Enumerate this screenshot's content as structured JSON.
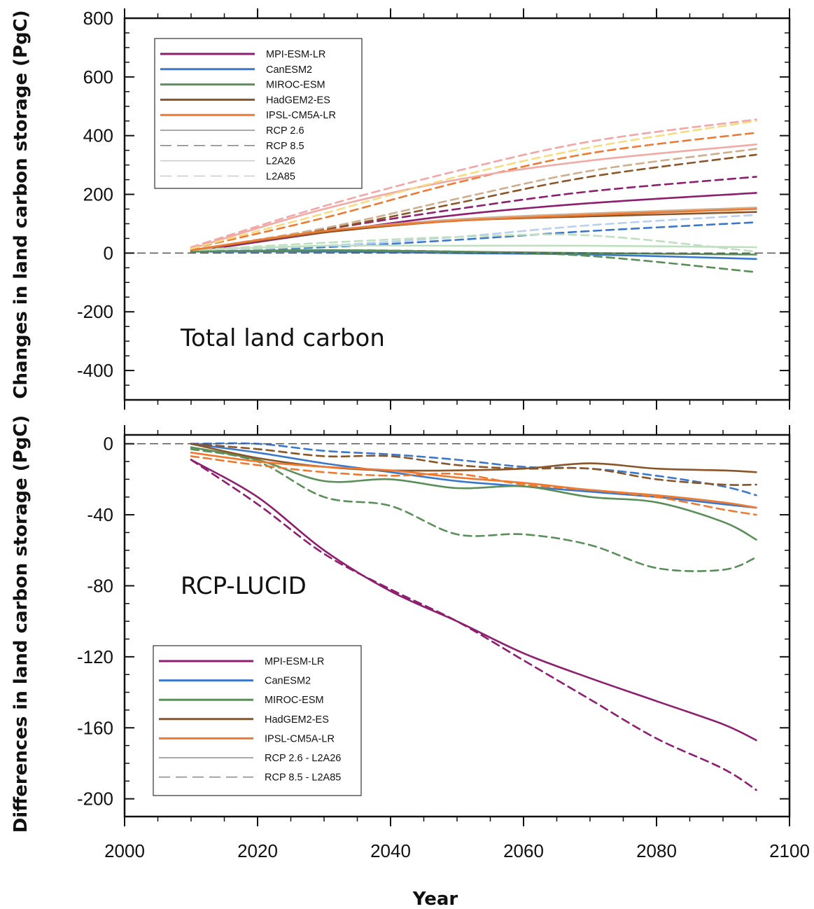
{
  "chart_data": [
    {
      "type": "line",
      "title": "Total land carbon",
      "ylabel": "Changes in land carbon storage (PgC)",
      "xlabel": "",
      "xlim": [
        2000,
        2100
      ],
      "ylim": [
        -500,
        800
      ],
      "yticks": [
        -400,
        -200,
        0,
        200,
        400,
        600,
        800
      ],
      "xticks": [
        2000,
        2020,
        2040,
        2060,
        2080,
        2100
      ],
      "grid": false,
      "legend_position": "top-left",
      "legend": [
        {
          "label": "MPI-ESM-LR",
          "color": "#8e1e6e",
          "dash": false,
          "width": 3
        },
        {
          "label": "CanESM2",
          "color": "#3a78cc",
          "dash": false,
          "width": 3
        },
        {
          "label": "MIROC-ESM",
          "color": "#5a8f5a",
          "dash": false,
          "width": 3
        },
        {
          "label": "HadGEM2-ES",
          "color": "#8a5628",
          "dash": false,
          "width": 3
        },
        {
          "label": "IPSL-CM5A-LR",
          "color": "#ee7a32",
          "dash": false,
          "width": 3
        },
        {
          "label": "RCP 2.6",
          "color": "#777777",
          "dash": false,
          "width": 1.3
        },
        {
          "label": "RCP 8.5",
          "color": "#777777",
          "dash": true,
          "width": 1.3
        },
        {
          "label": "L2A26",
          "color": "#c4c4c4",
          "dash": false,
          "width": 1.3
        },
        {
          "label": "L2A85",
          "color": "#c4c4c4",
          "dash": true,
          "width": 1.3
        }
      ],
      "series": [
        {
          "model": "MPI-ESM-LR",
          "scenario": "RCP 2.6",
          "color": "#8e1e6e",
          "dash": false,
          "x": [
            2010,
            2030,
            2050,
            2070,
            2095
          ],
          "y": [
            5,
            70,
            130,
            170,
            205
          ]
        },
        {
          "model": "MPI-ESM-LR",
          "scenario": "RCP 8.5",
          "color": "#8e1e6e",
          "dash": true,
          "x": [
            2010,
            2030,
            2050,
            2070,
            2095
          ],
          "y": [
            5,
            80,
            150,
            210,
            260
          ]
        },
        {
          "model": "CanESM2",
          "scenario": "RCP 2.6",
          "color": "#3a78cc",
          "dash": false,
          "x": [
            2010,
            2030,
            2050,
            2070,
            2095
          ],
          "y": [
            5,
            5,
            0,
            -5,
            -20
          ]
        },
        {
          "model": "CanESM2",
          "scenario": "RCP 8.5",
          "color": "#3a78cc",
          "dash": true,
          "x": [
            2010,
            2030,
            2050,
            2070,
            2095
          ],
          "y": [
            5,
            20,
            45,
            75,
            105
          ]
        },
        {
          "model": "CanESM2",
          "scenario": "L2A85",
          "color": "#b9d0ee",
          "dash": true,
          "x": [
            2010,
            2030,
            2050,
            2070,
            2095
          ],
          "y": [
            5,
            25,
            55,
            95,
            130
          ]
        },
        {
          "model": "MIROC-ESM",
          "scenario": "RCP 2.6",
          "color": "#5a8f5a",
          "dash": false,
          "x": [
            2010,
            2030,
            2050,
            2070,
            2095
          ],
          "y": [
            5,
            10,
            5,
            0,
            -5
          ]
        },
        {
          "model": "MIROC-ESM",
          "scenario": "RCP 8.5",
          "color": "#5a8f5a",
          "dash": true,
          "x": [
            2010,
            2030,
            2050,
            2070,
            2095
          ],
          "y": [
            5,
            10,
            5,
            -10,
            -65
          ]
        },
        {
          "model": "MIROC-ESM",
          "scenario": "L2A26",
          "color": "#bfe0bf",
          "dash": false,
          "x": [
            2010,
            2030,
            2050,
            2070,
            2095
          ],
          "y": [
            10,
            25,
            25,
            25,
            20
          ]
        },
        {
          "model": "MIROC-ESM",
          "scenario": "L2A85",
          "color": "#bfe0bf",
          "dash": true,
          "x": [
            2010,
            2030,
            2050,
            2070,
            2095
          ],
          "y": [
            10,
            35,
            55,
            60,
            5
          ]
        },
        {
          "model": "HadGEM2-ES",
          "scenario": "RCP 2.6",
          "color": "#8a5628",
          "dash": false,
          "x": [
            2010,
            2030,
            2050,
            2070,
            2095
          ],
          "y": [
            10,
            70,
            110,
            125,
            140
          ]
        },
        {
          "model": "HadGEM2-ES",
          "scenario": "RCP 8.5",
          "color": "#8a5628",
          "dash": true,
          "x": [
            2010,
            2030,
            2050,
            2070,
            2095
          ],
          "y": [
            10,
            80,
            170,
            260,
            335
          ]
        },
        {
          "model": "HadGEM2-ES",
          "scenario": "L2A26",
          "color": "#cfae8e",
          "dash": false,
          "x": [
            2010,
            2030,
            2050,
            2070,
            2095
          ],
          "y": [
            10,
            75,
            115,
            135,
            155
          ]
        },
        {
          "model": "HadGEM2-ES",
          "scenario": "L2A85",
          "color": "#cfae8e",
          "dash": true,
          "x": [
            2010,
            2030,
            2050,
            2070,
            2095
          ],
          "y": [
            10,
            85,
            185,
            280,
            355
          ]
        },
        {
          "model": "IPSL-CM5A-LR",
          "scenario": "RCP 2.6",
          "color": "#ee7a32",
          "dash": false,
          "x": [
            2010,
            2030,
            2050,
            2070,
            2095
          ],
          "y": [
            10,
            75,
            110,
            130,
            150
          ]
        },
        {
          "model": "IPSL-CM5A-LR",
          "scenario": "RCP 8.5",
          "color": "#ee7a32",
          "dash": true,
          "x": [
            2010,
            2030,
            2050,
            2070,
            2095
          ],
          "y": [
            15,
            120,
            240,
            340,
            410
          ]
        },
        {
          "model": "IPSL-CM5A-LR",
          "scenario": "L2A26",
          "color": "#f2aaa5",
          "dash": false,
          "x": [
            2010,
            2030,
            2050,
            2070,
            2095
          ],
          "y": [
            15,
            150,
            250,
            315,
            370
          ]
        },
        {
          "model": "IPSL-CM5A-LR",
          "scenario": "L2A85",
          "color": "#f4a6a6",
          "dash": true,
          "x": [
            2010,
            2030,
            2050,
            2070,
            2095
          ],
          "y": [
            20,
            160,
            280,
            380,
            455
          ]
        },
        {
          "model": "IPSL-CM5A-LR",
          "scenario": "L2A85",
          "color": "#f6dc80",
          "dash": true,
          "x": [
            2010,
            2030,
            2050,
            2070,
            2095
          ],
          "y": [
            15,
            135,
            260,
            360,
            450
          ]
        }
      ],
      "reference_line": {
        "y": 0,
        "dash": true,
        "color": "#555555"
      }
    },
    {
      "type": "line",
      "title": "RCP-LUCID",
      "ylabel": "Differences in land carbon storage (PgC)",
      "xlabel": "Year",
      "xlim": [
        2000,
        2100
      ],
      "ylim": [
        -210,
        5
      ],
      "yticks": [
        -200,
        -160,
        -120,
        -80,
        -40,
        0
      ],
      "xticks": [
        2000,
        2020,
        2040,
        2060,
        2080,
        2100
      ],
      "grid": false,
      "legend_position": "bottom-left",
      "legend": [
        {
          "label": "MPI-ESM-LR",
          "color": "#8e1e6e",
          "dash": false,
          "width": 3
        },
        {
          "label": "CanESM2",
          "color": "#3a78cc",
          "dash": false,
          "width": 3
        },
        {
          "label": "MIROC-ESM",
          "color": "#5a8f5a",
          "dash": false,
          "width": 3
        },
        {
          "label": "HadGEM2-ES",
          "color": "#8a5628",
          "dash": false,
          "width": 3
        },
        {
          "label": "IPSL-CM5A-LR",
          "color": "#ee7a32",
          "dash": false,
          "width": 3
        },
        {
          "label": "RCP 2.6 - L2A26",
          "color": "#777777",
          "dash": false,
          "width": 1.3
        },
        {
          "label": "RCP 8.5 - L2A85",
          "color": "#777777",
          "dash": true,
          "width": 1.3
        }
      ],
      "series": [
        {
          "model": "MPI-ESM-LR",
          "scenario": "RCP 2.6 - L2A26",
          "color": "#8e1e6e",
          "dash": false,
          "x": [
            2010,
            2020,
            2030,
            2040,
            2050,
            2060,
            2070,
            2080,
            2090,
            2095
          ],
          "y": [
            -9,
            -30,
            -60,
            -83,
            -100,
            -118,
            -132,
            -145,
            -158,
            -167
          ]
        },
        {
          "model": "MPI-ESM-LR",
          "scenario": "RCP 8.5 - L2A85",
          "color": "#8e1e6e",
          "dash": true,
          "x": [
            2010,
            2020,
            2030,
            2040,
            2050,
            2060,
            2070,
            2080,
            2090,
            2095
          ],
          "y": [
            -9,
            -34,
            -62,
            -82,
            -100,
            -122,
            -144,
            -166,
            -183,
            -195
          ]
        },
        {
          "model": "CanESM2",
          "scenario": "RCP 2.6 - L2A26",
          "color": "#3a78cc",
          "dash": false,
          "x": [
            2010,
            2020,
            2030,
            2040,
            2050,
            2060,
            2070,
            2080,
            2090,
            2095
          ],
          "y": [
            0,
            -5,
            -11,
            -16,
            -21,
            -24,
            -27,
            -30,
            -34,
            -36
          ]
        },
        {
          "model": "CanESM2",
          "scenario": "RCP 8.5 - L2A85",
          "color": "#3a78cc",
          "dash": true,
          "x": [
            2010,
            2020,
            2030,
            2040,
            2050,
            2060,
            2070,
            2080,
            2090,
            2095
          ],
          "y": [
            0,
            0,
            -4,
            -6,
            -9,
            -13,
            -14,
            -18,
            -24,
            -29
          ]
        },
        {
          "model": "MIROC-ESM",
          "scenario": "RCP 2.6 - L2A26",
          "color": "#5a8f5a",
          "dash": false,
          "x": [
            2010,
            2020,
            2030,
            2040,
            2050,
            2060,
            2070,
            2080,
            2090,
            2095
          ],
          "y": [
            -2,
            -9,
            -21,
            -20,
            -25,
            -24,
            -30,
            -33,
            -44,
            -54
          ]
        },
        {
          "model": "MIROC-ESM",
          "scenario": "RCP 8.5 - L2A85",
          "color": "#5a8f5a",
          "dash": true,
          "x": [
            2010,
            2020,
            2030,
            2040,
            2050,
            2060,
            2070,
            2080,
            2090,
            2095
          ],
          "y": [
            -3,
            -10,
            -30,
            -35,
            -51,
            -51,
            -57,
            -70,
            -71,
            -64
          ]
        },
        {
          "model": "HadGEM2-ES",
          "scenario": "RCP 2.6 - L2A26",
          "color": "#8a5628",
          "dash": false,
          "x": [
            2010,
            2020,
            2030,
            2040,
            2050,
            2060,
            2070,
            2080,
            2090,
            2095
          ],
          "y": [
            0,
            -8,
            -13,
            -15,
            -15,
            -14,
            -11,
            -14,
            -15,
            -16
          ]
        },
        {
          "model": "HadGEM2-ES",
          "scenario": "RCP 8.5 - L2A85",
          "color": "#8a5628",
          "dash": true,
          "x": [
            2010,
            2020,
            2030,
            2040,
            2050,
            2060,
            2070,
            2080,
            2090,
            2095
          ],
          "y": [
            0,
            -3,
            -7,
            -7,
            -12,
            -14,
            -14,
            -20,
            -23,
            -23
          ]
        },
        {
          "model": "IPSL-CM5A-LR",
          "scenario": "RCP 2.6 - L2A26",
          "color": "#ee7a32",
          "dash": false,
          "x": [
            2010,
            2020,
            2030,
            2040,
            2050,
            2060,
            2070,
            2080,
            2090,
            2095
          ],
          "y": [
            -5,
            -10,
            -13,
            -15,
            -19,
            -22,
            -26,
            -29,
            -33,
            -36
          ]
        },
        {
          "model": "IPSL-CM5A-LR",
          "scenario": "RCP 8.5 - L2A85",
          "color": "#ee7a32",
          "dash": true,
          "x": [
            2010,
            2020,
            2030,
            2040,
            2050,
            2060,
            2070,
            2080,
            2090,
            2095
          ],
          "y": [
            -7,
            -12,
            -16,
            -18,
            -17,
            -23,
            -26,
            -30,
            -37,
            -40
          ]
        }
      ],
      "reference_line": {
        "y": 0,
        "dash": true,
        "color": "#555555"
      }
    }
  ]
}
